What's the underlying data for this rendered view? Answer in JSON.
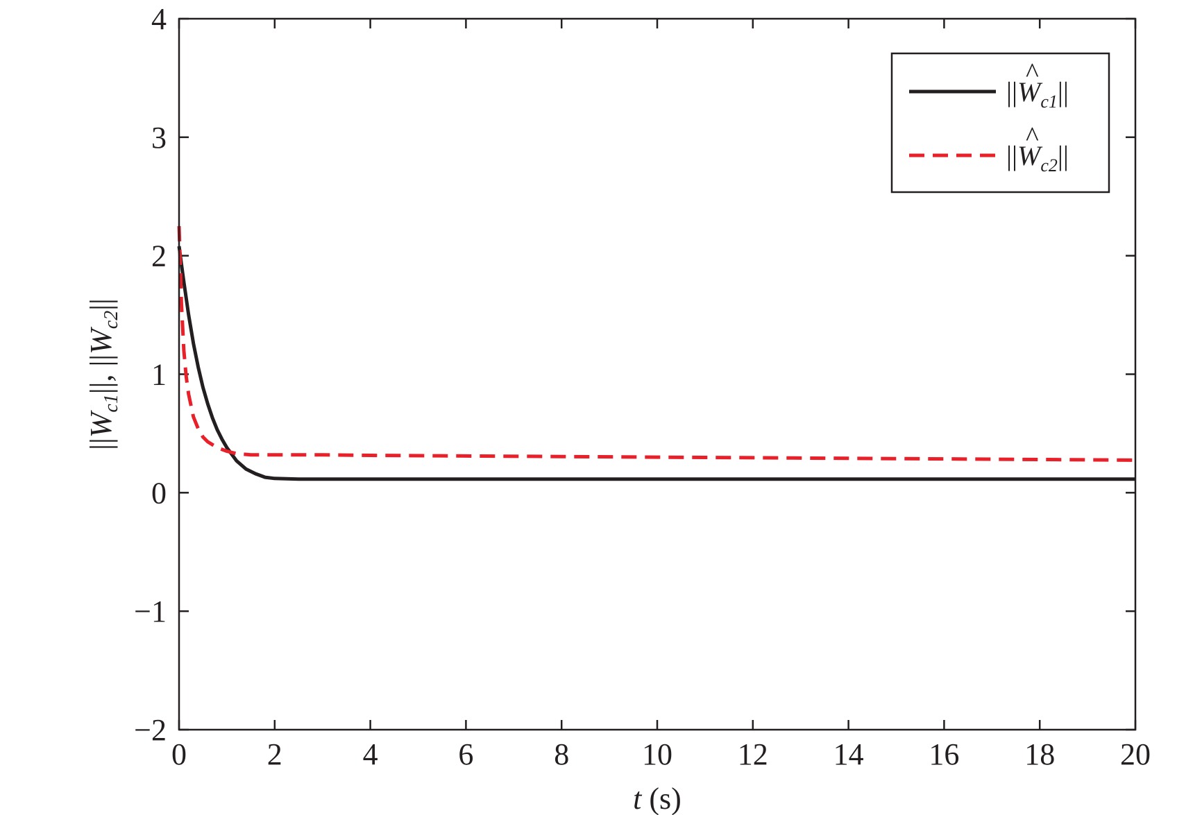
{
  "chart_data": {
    "type": "line",
    "title": "",
    "xlabel": {
      "var": "t",
      "unit": " (s)"
    },
    "ylabel": {
      "text": "||Ŵc1||, ||Ŵc2||",
      "var": "W",
      "sub1": "c1",
      "sub2": "c2",
      "sep": ", "
    },
    "xlim": [
      0,
      20
    ],
    "ylim": [
      -2,
      4
    ],
    "xticks": [
      0,
      2,
      4,
      6,
      8,
      10,
      12,
      14,
      16,
      18,
      20
    ],
    "yticks": [
      -2,
      -1,
      0,
      1,
      2,
      3,
      4
    ],
    "ytick_labels": [
      "−2",
      "−1",
      "0",
      "1",
      "2",
      "3",
      "4"
    ],
    "grid": false,
    "legend_position": "top-right",
    "series": [
      {
        "name": "||Ŵc1||",
        "name_var": "W",
        "name_sub": "c1",
        "style": "solid",
        "color": "#231f20",
        "x": [
          0,
          0.05,
          0.1,
          0.2,
          0.3,
          0.4,
          0.5,
          0.6,
          0.7,
          0.8,
          0.9,
          1.0,
          1.2,
          1.4,
          1.6,
          1.8,
          2.0,
          2.5,
          3,
          4,
          6,
          8,
          10,
          12,
          14,
          16,
          18,
          20
        ],
        "y": [
          2.08,
          1.93,
          1.78,
          1.5,
          1.26,
          1.06,
          0.89,
          0.75,
          0.63,
          0.53,
          0.45,
          0.38,
          0.27,
          0.2,
          0.16,
          0.13,
          0.12,
          0.115,
          0.115,
          0.115,
          0.115,
          0.115,
          0.115,
          0.115,
          0.115,
          0.115,
          0.115,
          0.115
        ]
      },
      {
        "name": "||Ŵc2||",
        "name_var": "W",
        "name_sub": "c2",
        "style": "dashed",
        "color": "#e8202a",
        "x": [
          0,
          0.02,
          0.05,
          0.1,
          0.15,
          0.2,
          0.3,
          0.4,
          0.5,
          0.6,
          0.8,
          1.0,
          1.2,
          1.5,
          2,
          3,
          4,
          6,
          8,
          10,
          12,
          14,
          16,
          18,
          20
        ],
        "y": [
          2.25,
          2.0,
          1.6,
          1.2,
          0.98,
          0.83,
          0.64,
          0.54,
          0.47,
          0.43,
          0.38,
          0.35,
          0.33,
          0.32,
          0.32,
          0.32,
          0.315,
          0.31,
          0.305,
          0.3,
          0.295,
          0.29,
          0.285,
          0.28,
          0.275
        ]
      }
    ]
  }
}
